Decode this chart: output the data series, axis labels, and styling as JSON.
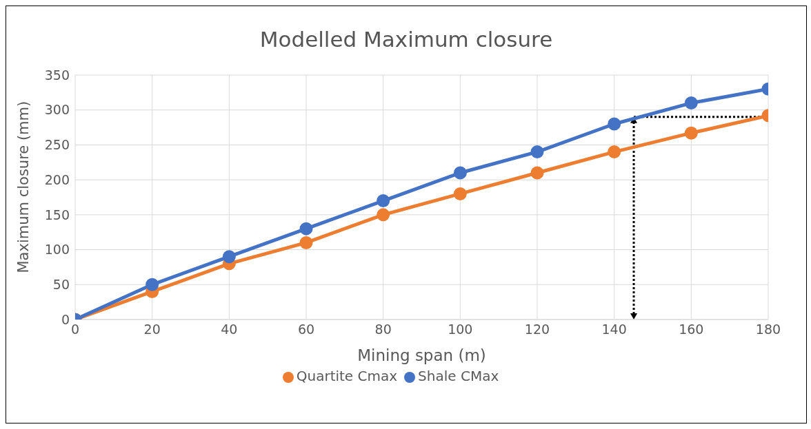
{
  "chart_data": {
    "type": "line",
    "title": "Modelled Maximum closure",
    "xlabel": "Mining span (m)",
    "ylabel": "Maximum closure (mm)",
    "x": [
      0,
      20,
      40,
      60,
      80,
      100,
      120,
      140,
      160,
      180
    ],
    "series": [
      {
        "name": "Quartite Cmax",
        "color": "#ed7d31",
        "values": [
          0,
          40,
          80,
          110,
          150,
          180,
          210,
          240,
          267,
          292
        ]
      },
      {
        "name": "Shale CMax",
        "color": "#4472c4",
        "values": [
          0,
          50,
          90,
          130,
          170,
          210,
          240,
          280,
          310,
          330
        ]
      }
    ],
    "xlim": [
      0,
      180
    ],
    "xticks": [
      0,
      20,
      40,
      60,
      80,
      100,
      120,
      140,
      160,
      180
    ],
    "ylim": [
      0,
      350
    ],
    "yticks": [
      0,
      50,
      100,
      150,
      200,
      250,
      300,
      350
    ],
    "grid": true,
    "legend": "bottom",
    "marker": "circle",
    "line_style": "solid"
  }
}
